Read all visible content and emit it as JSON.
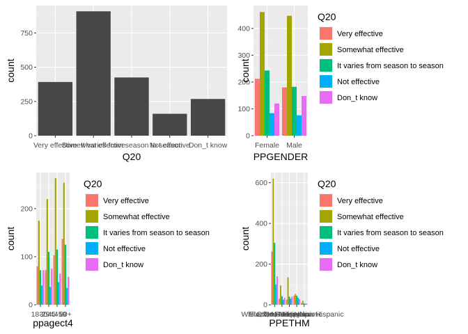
{
  "legend_title": "Q20",
  "legend_entries": [
    "Very effective",
    "Somewhat effective",
    "It varies from season to season",
    "Not effective",
    "Don_t know"
  ],
  "colors": [
    "#F8766D",
    "#A3A500",
    "#00BF7D",
    "#00B0F6",
    "#E76BF3"
  ],
  "chart_data": [
    {
      "type": "bar",
      "id": "q20",
      "title": "",
      "xlabel": "Q20",
      "ylabel": "count",
      "categories": [
        "Very effective",
        "Somewhat effective",
        "It varies from season to season",
        "Not effective",
        "Don_t know"
      ],
      "values": [
        392,
        908,
        425,
        160,
        268
      ],
      "yticks": [
        0,
        250,
        500,
        750
      ],
      "ylim": [
        0,
        950
      ],
      "legend": false,
      "grid": true,
      "color": "#474747"
    },
    {
      "type": "bar",
      "id": "gender",
      "title": "",
      "xlabel": "PPGENDER",
      "ylabel": "count",
      "categories": [
        "Female",
        "Male"
      ],
      "series": [
        {
          "name": "Very effective",
          "values": [
            212,
            180
          ]
        },
        {
          "name": "Somewhat effective",
          "values": [
            461,
            447
          ]
        },
        {
          "name": "It varies from season to season",
          "values": [
            243,
            182
          ]
        },
        {
          "name": "Not effective",
          "values": [
            84,
            76
          ]
        },
        {
          "name": "Don_t know",
          "values": [
            120,
            148
          ]
        }
      ],
      "yticks": [
        0,
        100,
        200,
        300,
        400
      ],
      "ylim": [
        0,
        485
      ],
      "legend": true,
      "grid": true
    },
    {
      "type": "bar",
      "id": "age",
      "title": "",
      "xlabel": "ppagect4",
      "ylabel": "count",
      "categories": [
        "18-29",
        "30-44",
        "45-59",
        "60+"
      ],
      "series": [
        {
          "name": "Very effective",
          "values": [
            80,
            72,
            103,
            137
          ]
        },
        {
          "name": "Somewhat effective",
          "values": [
            175,
            220,
            263,
            254
          ]
        },
        {
          "name": "It varies from season to season",
          "values": [
            72,
            110,
            115,
            125
          ]
        },
        {
          "name": "Not effective",
          "values": [
            40,
            37,
            47,
            35
          ]
        },
        {
          "name": "Don_t know",
          "values": [
            72,
            75,
            65,
            58
          ]
        }
      ],
      "yticks": [
        0,
        100,
        200
      ],
      "ylim": [
        0,
        275
      ],
      "legend": true,
      "grid": true
    },
    {
      "type": "bar",
      "id": "eth",
      "title": "",
      "xlabel": "PPETHM",
      "ylabel": "count",
      "categories": [
        "White, Non-Hispanic",
        "Black, Non-Hispanic",
        "Other, Non-Hispanic",
        "Hispanic",
        "2+ Races, Non-Hispanic"
      ],
      "series": [
        {
          "name": "Very effective",
          "values": [
            262,
            30,
            25,
            45,
            10
          ]
        },
        {
          "name": "Somewhat effective",
          "values": [
            620,
            95,
            135,
            53,
            20
          ]
        },
        {
          "name": "It varies from season to season",
          "values": [
            305,
            42,
            40,
            45,
            8
          ]
        },
        {
          "name": "Not effective",
          "values": [
            100,
            25,
            30,
            35,
            5
          ]
        },
        {
          "name": "Don_t know",
          "values": [
            140,
            35,
            40,
            28,
            5
          ]
        }
      ],
      "yticks": [
        0,
        200,
        400,
        600
      ],
      "ylim": [
        0,
        650
      ],
      "legend": true,
      "grid": true
    }
  ]
}
